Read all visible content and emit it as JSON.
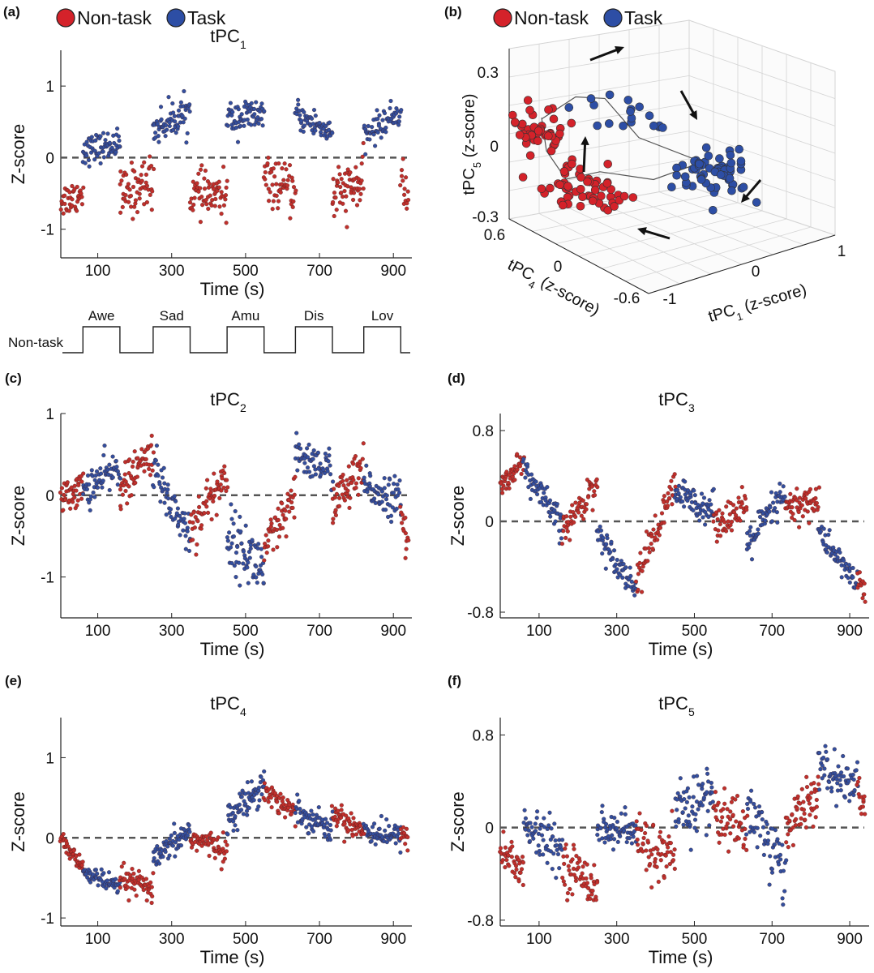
{
  "legend": {
    "nontask": "Non-task",
    "task": "Task"
  },
  "colors": {
    "nontask": "#d4222a",
    "task": "#2d4ea5",
    "nontask_dot": "#c0302c",
    "task_dot": "#334f9e",
    "baseline": "#555555"
  },
  "episodes": {
    "label": "Non-task",
    "blocks": [
      "Awe",
      "Sad",
      "Amu",
      "Dis",
      "Lov"
    ],
    "task_intervals": [
      [
        60,
        160
      ],
      [
        250,
        350
      ],
      [
        450,
        550
      ],
      [
        635,
        735
      ],
      [
        820,
        920
      ]
    ]
  },
  "chart_data": [
    {
      "id": "a",
      "panel_label": "(a)",
      "type": "scatter",
      "title": "tPC",
      "title_sub": "1",
      "xlabel": "Time (s)",
      "ylabel": "Z-score",
      "xlim": [
        0,
        950
      ],
      "ylim": [
        -1.4,
        1.5
      ],
      "xticks": [
        "100",
        "300",
        "500",
        "700",
        "900"
      ],
      "yticks": [
        "1",
        "0",
        "-1"
      ],
      "segments": [
        {
          "t0": 0,
          "t1": 60,
          "y0": -0.6,
          "y1": -0.5,
          "cls": "nontask",
          "n": 40,
          "sd": 0.12
        },
        {
          "t0": 60,
          "t1": 160,
          "y0": 0.1,
          "y1": 0.2,
          "cls": "task",
          "n": 70,
          "sd": 0.1
        },
        {
          "t0": 160,
          "t1": 250,
          "y0": -0.55,
          "y1": -0.3,
          "cls": "nontask",
          "n": 60,
          "sd": 0.18
        },
        {
          "t0": 250,
          "t1": 350,
          "y0": 0.4,
          "y1": 0.65,
          "cls": "task",
          "n": 70,
          "sd": 0.12
        },
        {
          "t0": 350,
          "t1": 450,
          "y0": -0.5,
          "y1": -0.55,
          "cls": "nontask",
          "n": 65,
          "sd": 0.15
        },
        {
          "t0": 450,
          "t1": 550,
          "y0": 0.55,
          "y1": 0.6,
          "cls": "task",
          "n": 70,
          "sd": 0.12
        },
        {
          "t0": 550,
          "t1": 635,
          "y0": -0.3,
          "y1": -0.5,
          "cls": "nontask",
          "n": 55,
          "sd": 0.15
        },
        {
          "t0": 635,
          "t1": 735,
          "y0": 0.6,
          "y1": 0.35,
          "cls": "task",
          "n": 65,
          "sd": 0.1
        },
        {
          "t0": 735,
          "t1": 820,
          "y0": -0.55,
          "y1": -0.35,
          "cls": "nontask",
          "n": 60,
          "sd": 0.18
        },
        {
          "t0": 820,
          "t1": 920,
          "y0": 0.3,
          "y1": 0.65,
          "cls": "task",
          "n": 65,
          "sd": 0.1
        },
        {
          "t0": 920,
          "t1": 940,
          "y0": -0.3,
          "y1": -0.6,
          "cls": "nontask",
          "n": 14,
          "sd": 0.15
        }
      ]
    },
    {
      "id": "c",
      "panel_label": "(c)",
      "type": "scatter",
      "title": "tPC",
      "title_sub": "2",
      "xlabel": "Time (s)",
      "ylabel": "Z-score",
      "xlim": [
        0,
        950
      ],
      "ylim": [
        -1.5,
        1.0
      ],
      "xticks": [
        "100",
        "300",
        "500",
        "700",
        "900"
      ],
      "yticks": [
        "1",
        "0",
        "-1"
      ],
      "segments": [
        {
          "t0": 0,
          "t1": 60,
          "y0": -0.05,
          "y1": 0.1,
          "cls": "nontask",
          "n": 45,
          "sd": 0.1
        },
        {
          "t0": 60,
          "t1": 160,
          "y0": 0.05,
          "y1": 0.35,
          "cls": "task",
          "n": 65,
          "sd": 0.12
        },
        {
          "t0": 160,
          "t1": 250,
          "y0": 0.05,
          "y1": 0.55,
          "cls": "nontask",
          "n": 60,
          "sd": 0.12
        },
        {
          "t0": 250,
          "t1": 350,
          "y0": 0.3,
          "y1": -0.5,
          "cls": "task",
          "n": 65,
          "sd": 0.15
        },
        {
          "t0": 350,
          "t1": 450,
          "y0": -0.4,
          "y1": 0.25,
          "cls": "nontask",
          "n": 65,
          "sd": 0.15
        },
        {
          "t0": 450,
          "t1": 550,
          "y0": -0.5,
          "y1": -0.9,
          "cls": "task",
          "n": 70,
          "sd": 0.18
        },
        {
          "t0": 550,
          "t1": 635,
          "y0": -0.7,
          "y1": -0.05,
          "cls": "nontask",
          "n": 55,
          "sd": 0.15
        },
        {
          "t0": 635,
          "t1": 735,
          "y0": 0.5,
          "y1": 0.3,
          "cls": "task",
          "n": 65,
          "sd": 0.12
        },
        {
          "t0": 735,
          "t1": 820,
          "y0": -0.1,
          "y1": 0.3,
          "cls": "nontask",
          "n": 60,
          "sd": 0.15
        },
        {
          "t0": 820,
          "t1": 920,
          "y0": 0.1,
          "y1": -0.05,
          "cls": "task",
          "n": 65,
          "sd": 0.12
        },
        {
          "t0": 920,
          "t1": 940,
          "y0": -0.3,
          "y1": -0.6,
          "cls": "nontask",
          "n": 14,
          "sd": 0.15
        }
      ]
    },
    {
      "id": "d",
      "panel_label": "(d)",
      "type": "scatter",
      "title": "tPC",
      "title_sub": "3",
      "xlabel": "Time (s)",
      "ylabel": "Z-score",
      "xlim": [
        0,
        950
      ],
      "ylim": [
        -0.85,
        0.95
      ],
      "xticks": [
        "100",
        "300",
        "500",
        "700",
        "900"
      ],
      "yticks": [
        "0.8",
        "0",
        "-0.8"
      ],
      "segments": [
        {
          "t0": 0,
          "t1": 60,
          "y0": 0.3,
          "y1": 0.55,
          "cls": "nontask",
          "n": 45,
          "sd": 0.05
        },
        {
          "t0": 60,
          "t1": 160,
          "y0": 0.45,
          "y1": -0.05,
          "cls": "task",
          "n": 65,
          "sd": 0.07
        },
        {
          "t0": 160,
          "t1": 250,
          "y0": -0.1,
          "y1": 0.35,
          "cls": "nontask",
          "n": 60,
          "sd": 0.07
        },
        {
          "t0": 250,
          "t1": 350,
          "y0": -0.1,
          "y1": -0.6,
          "cls": "task",
          "n": 65,
          "sd": 0.06
        },
        {
          "t0": 350,
          "t1": 450,
          "y0": -0.5,
          "y1": 0.3,
          "cls": "nontask",
          "n": 65,
          "sd": 0.08
        },
        {
          "t0": 450,
          "t1": 550,
          "y0": 0.25,
          "y1": 0.1,
          "cls": "task",
          "n": 70,
          "sd": 0.07
        },
        {
          "t0": 550,
          "t1": 635,
          "y0": 0.0,
          "y1": 0.1,
          "cls": "nontask",
          "n": 55,
          "sd": 0.08
        },
        {
          "t0": 635,
          "t1": 735,
          "y0": -0.2,
          "y1": 0.25,
          "cls": "task",
          "n": 65,
          "sd": 0.08
        },
        {
          "t0": 735,
          "t1": 820,
          "y0": 0.1,
          "y1": 0.2,
          "cls": "nontask",
          "n": 60,
          "sd": 0.08
        },
        {
          "t0": 820,
          "t1": 920,
          "y0": -0.1,
          "y1": -0.55,
          "cls": "task",
          "n": 65,
          "sd": 0.06
        },
        {
          "t0": 920,
          "t1": 940,
          "y0": -0.5,
          "y1": -0.65,
          "cls": "nontask",
          "n": 14,
          "sd": 0.05
        }
      ]
    },
    {
      "id": "e",
      "panel_label": "(e)",
      "type": "scatter",
      "title": "tPC",
      "title_sub": "4",
      "xlabel": "Time (s)",
      "ylabel": "Z-score",
      "xlim": [
        0,
        950
      ],
      "ylim": [
        -1.1,
        1.5
      ],
      "xticks": [
        "100",
        "300",
        "500",
        "700",
        "900"
      ],
      "yticks": [
        "1",
        "0",
        "-1"
      ],
      "segments": [
        {
          "t0": 0,
          "t1": 60,
          "y0": 0.0,
          "y1": -0.4,
          "cls": "nontask",
          "n": 45,
          "sd": 0.06
        },
        {
          "t0": 60,
          "t1": 160,
          "y0": -0.4,
          "y1": -0.65,
          "cls": "task",
          "n": 65,
          "sd": 0.06
        },
        {
          "t0": 160,
          "t1": 250,
          "y0": -0.5,
          "y1": -0.65,
          "cls": "nontask",
          "n": 60,
          "sd": 0.08
        },
        {
          "t0": 250,
          "t1": 350,
          "y0": -0.3,
          "y1": 0.1,
          "cls": "task",
          "n": 65,
          "sd": 0.08
        },
        {
          "t0": 350,
          "t1": 450,
          "y0": 0.0,
          "y1": -0.15,
          "cls": "nontask",
          "n": 65,
          "sd": 0.08
        },
        {
          "t0": 450,
          "t1": 550,
          "y0": 0.2,
          "y1": 0.7,
          "cls": "task",
          "n": 70,
          "sd": 0.1
        },
        {
          "t0": 550,
          "t1": 635,
          "y0": 0.6,
          "y1": 0.3,
          "cls": "nontask",
          "n": 55,
          "sd": 0.08
        },
        {
          "t0": 635,
          "t1": 735,
          "y0": 0.35,
          "y1": 0.1,
          "cls": "task",
          "n": 65,
          "sd": 0.08
        },
        {
          "t0": 735,
          "t1": 820,
          "y0": 0.3,
          "y1": 0.1,
          "cls": "nontask",
          "n": 60,
          "sd": 0.08
        },
        {
          "t0": 820,
          "t1": 920,
          "y0": 0.1,
          "y1": 0.0,
          "cls": "task",
          "n": 65,
          "sd": 0.08
        },
        {
          "t0": 920,
          "t1": 940,
          "y0": 0.1,
          "y1": 0.0,
          "cls": "nontask",
          "n": 14,
          "sd": 0.08
        }
      ]
    },
    {
      "id": "f",
      "panel_label": "(f)",
      "type": "scatter",
      "title": "tPC",
      "title_sub": "5",
      "xlabel": "Time (s)",
      "ylabel": "Z-score",
      "xlim": [
        0,
        950
      ],
      "ylim": [
        -0.85,
        0.95
      ],
      "xticks": [
        "100",
        "300",
        "500",
        "700",
        "900"
      ],
      "yticks": [
        "0.8",
        "0",
        "-0.8"
      ],
      "segments": [
        {
          "t0": 0,
          "t1": 60,
          "y0": -0.2,
          "y1": -0.35,
          "cls": "nontask",
          "n": 45,
          "sd": 0.1
        },
        {
          "t0": 60,
          "t1": 160,
          "y0": 0.0,
          "y1": -0.2,
          "cls": "task",
          "n": 65,
          "sd": 0.1
        },
        {
          "t0": 160,
          "t1": 250,
          "y0": -0.3,
          "y1": -0.5,
          "cls": "nontask",
          "n": 60,
          "sd": 0.1
        },
        {
          "t0": 250,
          "t1": 350,
          "y0": 0.0,
          "y1": -0.05,
          "cls": "task",
          "n": 65,
          "sd": 0.08
        },
        {
          "t0": 350,
          "t1": 450,
          "y0": -0.1,
          "y1": -0.3,
          "cls": "nontask",
          "n": 65,
          "sd": 0.12
        },
        {
          "t0": 450,
          "t1": 550,
          "y0": 0.1,
          "y1": 0.3,
          "cls": "task",
          "n": 70,
          "sd": 0.15
        },
        {
          "t0": 550,
          "t1": 635,
          "y0": 0.1,
          "y1": 0.0,
          "cls": "nontask",
          "n": 55,
          "sd": 0.12
        },
        {
          "t0": 635,
          "t1": 735,
          "y0": 0.2,
          "y1": -0.4,
          "cls": "task",
          "n": 65,
          "sd": 0.15
        },
        {
          "t0": 735,
          "t1": 820,
          "y0": 0.0,
          "y1": 0.3,
          "cls": "nontask",
          "n": 60,
          "sd": 0.1
        },
        {
          "t0": 820,
          "t1": 920,
          "y0": 0.5,
          "y1": 0.35,
          "cls": "task",
          "n": 65,
          "sd": 0.1
        },
        {
          "t0": 920,
          "t1": 940,
          "y0": 0.35,
          "y1": 0.25,
          "cls": "nontask",
          "n": 14,
          "sd": 0.1
        }
      ]
    },
    {
      "id": "b",
      "panel_label": "(b)",
      "type": "scatter3d",
      "xlabel": "tPC",
      "xlabel_sub": "1",
      "xlabel_suffix": " (z-score)",
      "ylabel": "tPC",
      "ylabel_sub": "4",
      "ylabel_suffix": " (z-score)",
      "zlabel": "tPC",
      "zlabel_sub": "5",
      "zlabel_suffix": " (z-score)",
      "xticks": [
        "-1",
        "0",
        "1"
      ],
      "yticks": [
        "0.6",
        "0",
        "-0.6"
      ],
      "zticks": [
        "0.3",
        "0",
        "-0.3"
      ],
      "clusters": [
        {
          "cls": "nontask",
          "n": 45,
          "cx": -0.55,
          "cy": 0.3,
          "cz": 0.15,
          "sx": 0.12,
          "sy": 0.08,
          "sz": 0.05
        },
        {
          "cls": "nontask",
          "n": 55,
          "cx": -0.4,
          "cy": 0.0,
          "cz": -0.15,
          "sx": 0.2,
          "sy": 0.1,
          "sz": 0.05
        },
        {
          "cls": "task",
          "n": 65,
          "cx": 0.6,
          "cy": -0.3,
          "cz": -0.05,
          "sx": 0.15,
          "sy": 0.08,
          "sz": 0.05
        },
        {
          "cls": "task",
          "n": 18,
          "cx": 0.1,
          "cy": 0.2,
          "cz": 0.25,
          "sx": 0.35,
          "sy": 0.1,
          "sz": 0.04
        }
      ]
    }
  ]
}
